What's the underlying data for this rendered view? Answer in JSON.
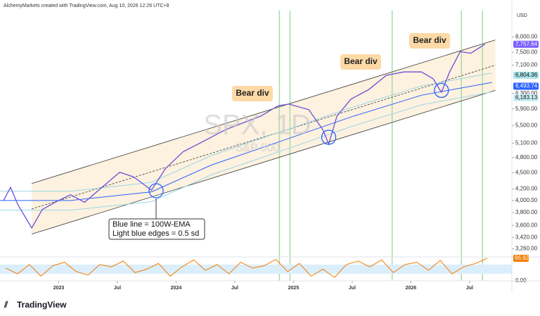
{
  "header": "AlchemyMarkets created with TradingView.com, Aug 10, 2026 12:26 UTC+8",
  "logo": "TradingView",
  "chart_data": {
    "type": "line",
    "title": "SPX, 1D",
    "subtitle": "S&P 500",
    "currency": "USD",
    "log_scale": true,
    "xlim": [
      2022.5,
      2026.86
    ],
    "xticks": [
      {
        "value": 2023,
        "label": "2023"
      },
      {
        "value": 2023.5,
        "label": "Jul"
      },
      {
        "value": 2024,
        "label": "2024"
      },
      {
        "value": 2024.5,
        "label": "Jul"
      },
      {
        "value": 2025,
        "label": "2025"
      },
      {
        "value": 2025.5,
        "label": "Jul"
      },
      {
        "value": 2026,
        "label": "2026"
      },
      {
        "value": 2026.5,
        "label": "Jul"
      }
    ],
    "ylim": [
      3150,
      8950
    ],
    "yticks": [
      {
        "value": 8000,
        "label": "8,000.00"
      },
      {
        "value": 7500,
        "label": "7,500.00"
      },
      {
        "value": 7100,
        "label": "7,100.00"
      },
      {
        "value": 6300,
        "label": "6,300.00"
      },
      {
        "value": 5900,
        "label": "5,900.00"
      },
      {
        "value": 5500,
        "label": "5,500.00"
      },
      {
        "value": 5100,
        "label": "5,100.00"
      },
      {
        "value": 4800,
        "label": "4,800.00"
      },
      {
        "value": 4500,
        "label": "4,500.00"
      },
      {
        "value": 4200,
        "label": "4,200.00"
      },
      {
        "value": 4000,
        "label": "4,000.00"
      },
      {
        "value": 3800,
        "label": "3,800.00"
      },
      {
        "value": 3600,
        "label": "3,600.00"
      },
      {
        "value": 3420,
        "label": "3,420.00"
      },
      {
        "value": 3260,
        "label": "3,260.00"
      }
    ],
    "price": {
      "x": [
        2022.53,
        2022.59,
        2022.65,
        2022.77,
        2022.86,
        2022.98,
        2023.1,
        2023.22,
        2023.34,
        2023.52,
        2023.64,
        2023.79,
        2023.91,
        2024.06,
        2024.24,
        2024.42,
        2024.57,
        2024.72,
        2024.87,
        2024.96,
        2025.13,
        2025.25,
        2025.3,
        2025.37,
        2025.49,
        2025.64,
        2025.79,
        2025.94,
        2026.09,
        2026.19,
        2026.26,
        2026.33,
        2026.42,
        2026.51,
        2026.63
      ],
      "values": [
        4000,
        4230,
        3940,
        3560,
        3850,
        3980,
        4100,
        3970,
        4180,
        4510,
        4420,
        4180,
        4580,
        4920,
        5150,
        5400,
        5560,
        5720,
        5980,
        6020,
        5880,
        5400,
        5080,
        5720,
        6150,
        6400,
        6800,
        6900,
        6900,
        6700,
        6330,
        6900,
        7520,
        7470,
        7757.64
      ],
      "color": "#6a4fd6"
    },
    "channel": {
      "x": [
        2022.77,
        2026.72
      ],
      "upper": [
        4300,
        7900
      ],
      "middle": [
        3860,
        7100
      ],
      "lower": [
        3470,
        6380
      ],
      "color": "#333333",
      "fill": "#fdf1df"
    },
    "ema": {
      "x": [
        2022.5,
        2023.1,
        2023.79,
        2024.3,
        2024.9,
        2025.49,
        2026.09,
        2026.69
      ],
      "values": [
        4000,
        4000,
        4150,
        4650,
        5150,
        5700,
        6250,
        6600
      ],
      "upper": [
        4160,
        4160,
        4320,
        4840,
        5360,
        5930,
        6500,
        6870
      ],
      "lower": [
        3840,
        3840,
        3980,
        4460,
        4940,
        5470,
        6000,
        6340
      ],
      "color": "#2962ff",
      "edge_color": "#9ad7e8"
    },
    "price_labels": [
      {
        "value": 7757.64,
        "label": "7,757.64",
        "color": "#7b61ff",
        "text_color": "#ffffff"
      },
      {
        "value": 6804.36,
        "label": "6,804.36",
        "color": "#a6e3e9",
        "text_color": "#111111"
      },
      {
        "value": 6493.74,
        "label": "6,493.74",
        "color": "#2962ff",
        "text_color": "#ffffff"
      },
      {
        "value": 6183.13,
        "label": "6,183.13",
        "color": "#c8eef4",
        "text_color": "#111111"
      }
    ],
    "markers": {
      "x": [
        2023.83,
        2025.3,
        2026.26
      ],
      "values": [
        4170,
        5230,
        6380
      ],
      "color": "#2962ff"
    },
    "vlines": {
      "x": [
        2024.88,
        2024.97,
        2025.84,
        2026.43,
        2026.61
      ],
      "color": "#a8dba8"
    },
    "annotations": [
      "Bear div",
      "Bear div",
      "Bear div"
    ],
    "note": [
      "Blue line = 100W-EMA",
      "Light blue edges = 0.5 sd"
    ],
    "rsi": {
      "x": [
        2022.55,
        2022.65,
        2022.75,
        2022.85,
        2022.95,
        2023.05,
        2023.15,
        2023.25,
        2023.35,
        2023.45,
        2023.55,
        2023.65,
        2023.75,
        2023.85,
        2023.95,
        2024.05,
        2024.15,
        2024.25,
        2024.35,
        2024.45,
        2024.55,
        2024.65,
        2024.75,
        2024.85,
        2024.95,
        2025.05,
        2025.15,
        2025.25,
        2025.35,
        2025.45,
        2025.55,
        2025.65,
        2025.75,
        2025.85,
        2025.95,
        2026.05,
        2026.15,
        2026.25,
        2026.35,
        2026.45,
        2026.55,
        2026.65
      ],
      "values": [
        55,
        30,
        70,
        20,
        65,
        80,
        40,
        25,
        70,
        60,
        85,
        35,
        50,
        75,
        20,
        60,
        90,
        45,
        70,
        30,
        80,
        55,
        65,
        92,
        40,
        75,
        20,
        50,
        15,
        70,
        85,
        60,
        90,
        35,
        70,
        80,
        45,
        88,
        30,
        60,
        75,
        96.92
      ],
      "color": "#f57c00",
      "ylim": [
        0,
        100
      ],
      "band": [
        30,
        70
      ],
      "band_color": "#dbeefb",
      "yticks": [
        {
          "value": 0,
          "label": "0.00"
        }
      ],
      "label_color": "#f57c00"
    }
  }
}
